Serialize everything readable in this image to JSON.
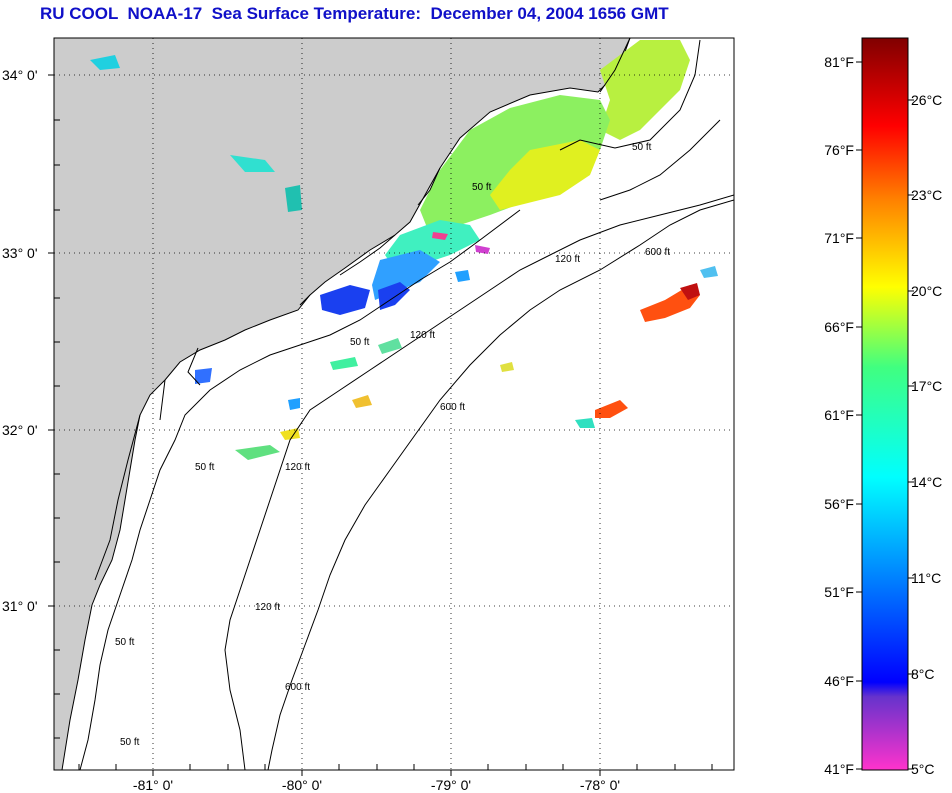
{
  "title": "RU COOL  NOAA-17  Sea Surface Temperature:  December 04, 2004 1656 GMT",
  "map": {
    "lat_labels": [
      "34° 0'",
      "33° 0'",
      "32° 0'",
      "31° 0'"
    ],
    "lon_labels": [
      "-81° 0'",
      "-80° 0'",
      "-79° 0'",
      "-78° 0'"
    ],
    "contour_labels": [
      "50 ft",
      "50 ft",
      "50 ft",
      "50 ft",
      "50 ft",
      "50 ft",
      "120 ft",
      "120 ft",
      "120 ft",
      "120 ft",
      "600 ft",
      "600 ft",
      "600 ft"
    ],
    "colors": {
      "land": "#cccccc",
      "ocean": "#ffffff",
      "grid": "#000000"
    }
  },
  "colorbar": {
    "fahrenheit_labels": [
      "81°F",
      "76°F",
      "71°F",
      "66°F",
      "61°F",
      "56°F",
      "51°F",
      "46°F",
      "41°F"
    ],
    "celsius_labels": [
      "26°C",
      "23°C",
      "20°C",
      "17°C",
      "14°C",
      "11°C",
      "8°C",
      "5°C"
    ],
    "colors": [
      "#ff33cc",
      "#6633cc",
      "#0000ff",
      "#00ffff",
      "#00ff66",
      "#ffff00",
      "#ff8000",
      "#ff0000",
      "#800000"
    ]
  }
}
